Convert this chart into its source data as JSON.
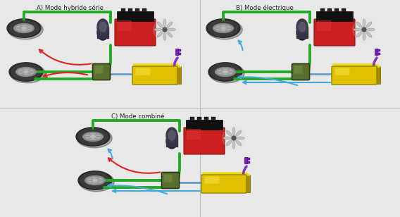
{
  "title_A": "A) Mode hybride série",
  "title_B": "B) Mode électrique",
  "title_C": "C) Mode combiné",
  "bg_color": "#e8e8e8",
  "divider_color": "#bbbbbb",
  "green_line": "#22aa22",
  "red_arrow": "#dd2222",
  "blue_arrow": "#44aadd",
  "purple_line": "#8833bb",
  "wheel_dark": "#2a2a2a",
  "wheel_mid": "#555555",
  "wheel_rim": "#aaaaaa",
  "wheel_hub": "#cccccc",
  "engine_red": "#cc2020",
  "engine_dark": "#1a1a1a",
  "engine_fan": "#c8c8c8",
  "engine_alt": "#333344",
  "motor_green": "#5a6e30",
  "motor_edge": "#2a3810",
  "battery_yellow": "#e0c000",
  "battery_face": "#ccaa00",
  "battery_edge": "#888800",
  "plug_purple": "#7722bb",
  "text_color": "#222222",
  "title_fs": 6.2
}
